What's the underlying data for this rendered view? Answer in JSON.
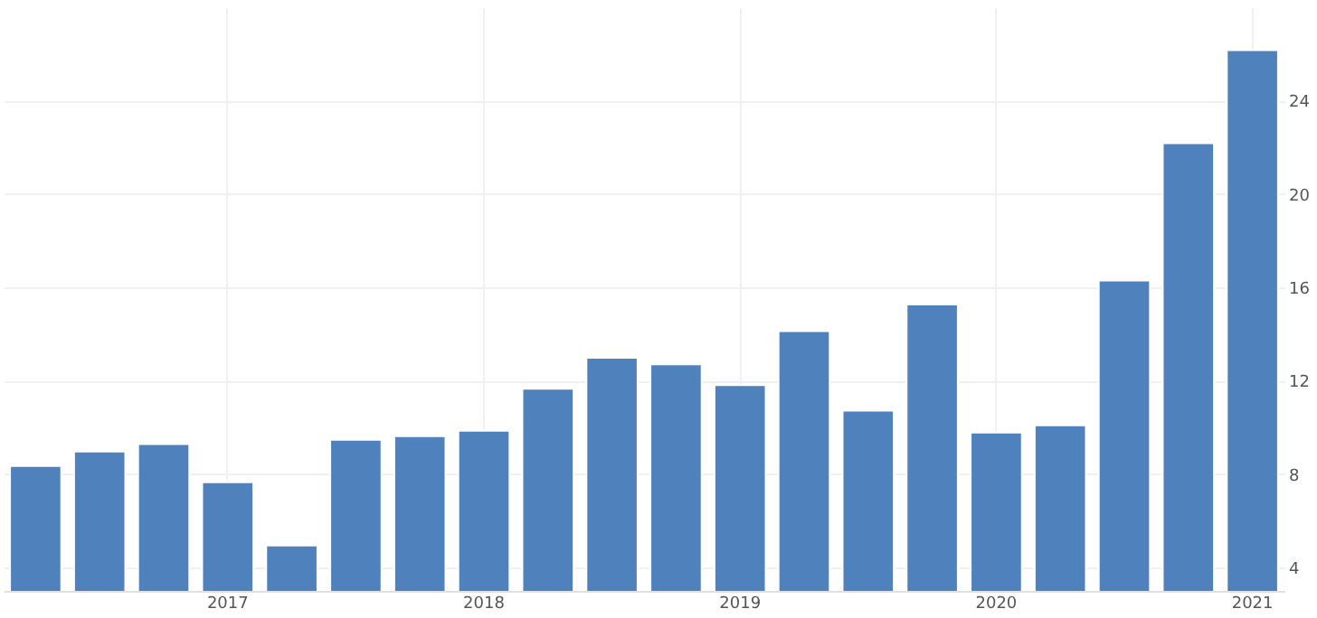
{
  "chart_data": {
    "type": "bar",
    "categories": [
      null,
      null,
      null,
      "2017",
      null,
      null,
      null,
      "2018",
      null,
      null,
      null,
      "2019",
      null,
      null,
      null,
      "2020",
      null,
      null,
      null,
      "2021"
    ],
    "values": [
      8.35,
      8.97,
      9.29,
      7.65,
      4.94,
      9.47,
      9.63,
      9.86,
      11.66,
      12.98,
      12.7,
      11.81,
      14.13,
      10.72,
      15.27,
      9.78,
      10.09,
      16.29,
      22.18,
      26.16
    ],
    "color": "#4f81bd",
    "ylim": [
      3,
      28
    ],
    "yticks": [
      4,
      8,
      12,
      16,
      20,
      24
    ],
    "grid": true
  }
}
